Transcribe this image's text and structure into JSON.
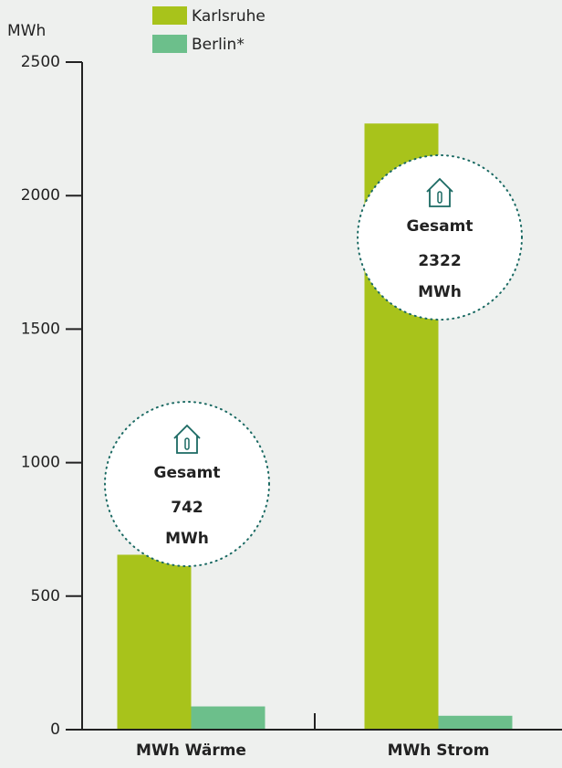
{
  "chart_data": {
    "type": "bar",
    "y_label": "MWh",
    "categories": [
      "MWh Wärme",
      "MWh Strom"
    ],
    "series": [
      {
        "name": "Karlsruhe",
        "color": "#a8c31b",
        "values": [
          655,
          2270
        ]
      },
      {
        "name": "Berlin*",
        "color": "#6cbf8b",
        "values": [
          87,
          52
        ]
      }
    ],
    "ylim": [
      0,
      2500
    ],
    "yticks": [
      0,
      500,
      1000,
      1500,
      2000,
      2500
    ],
    "annotations": [
      {
        "label": "Gesamt",
        "value": 742,
        "unit": "MWh"
      },
      {
        "label": "Gesamt",
        "value": 2322,
        "unit": "MWh"
      }
    ]
  }
}
